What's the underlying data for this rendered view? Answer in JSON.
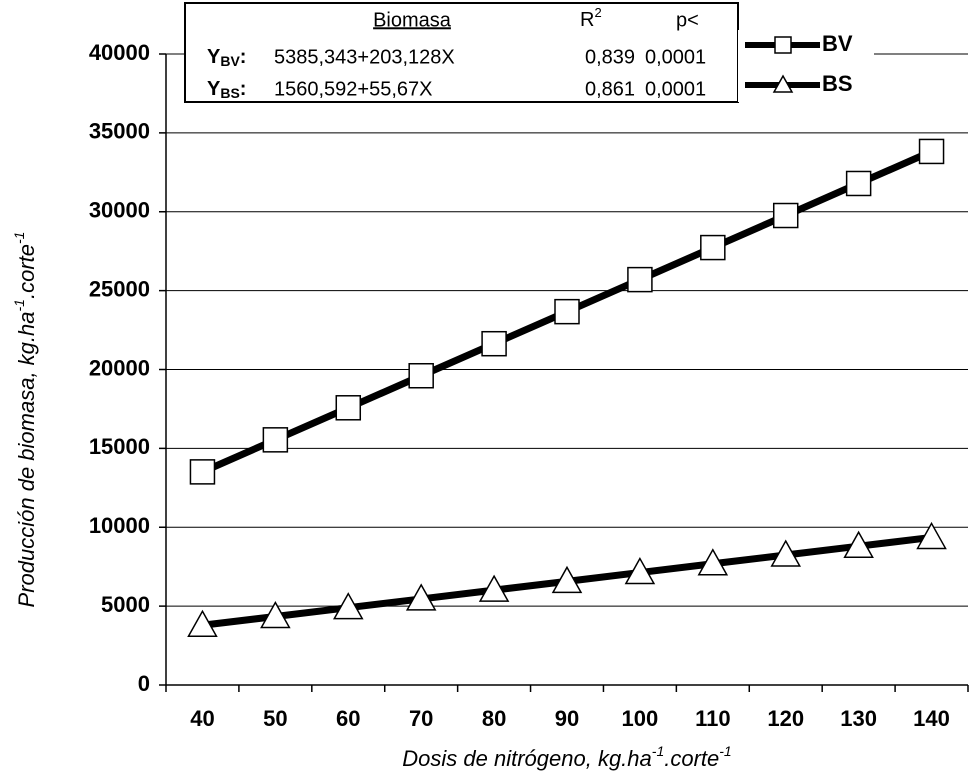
{
  "chart_data": {
    "type": "line",
    "categories": [
      "40",
      "50",
      "60",
      "70",
      "80",
      "90",
      "100",
      "110",
      "120",
      "130",
      "140"
    ],
    "series": [
      {
        "name": "BV",
        "color": "#000000",
        "marker": "square",
        "values": [
          13510,
          15541,
          17573,
          19604,
          21635,
          23667,
          25698,
          27729,
          29761,
          31792,
          33823
        ]
      },
      {
        "name": "BS",
        "color": "#000000",
        "marker": "triangle",
        "values": [
          3787,
          4344,
          4901,
          5457,
          6014,
          6571,
          7128,
          7684,
          8241,
          8798,
          9354
        ]
      }
    ],
    "ylim": [
      0,
      40000
    ],
    "yticks": [
      0,
      5000,
      10000,
      15000,
      20000,
      25000,
      30000,
      35000,
      40000
    ],
    "grid": true,
    "xlabel_parts": [
      "Dosis de nitrógeno, kg.ha",
      "-1",
      ".corte",
      "-1"
    ],
    "ylabel_parts": [
      "Producción de biomasa, kg.ha",
      "-1",
      ".corte",
      "-1"
    ],
    "annotation_table": {
      "header": {
        "equation": "Biomasa",
        "r2": "R",
        "r2_sup": "2",
        "p": "p<"
      },
      "rows": [
        {
          "symbol": "Y",
          "subscript": "BV",
          "colon": ":",
          "equation": "5385,343+203,128X",
          "r2": "0,839",
          "p": "0,0001"
        },
        {
          "symbol": "Y",
          "subscript": "BS",
          "colon": ":",
          "equation": "1560,592+55,67X",
          "r2": "0,861",
          "p": "0,0001"
        }
      ]
    }
  }
}
